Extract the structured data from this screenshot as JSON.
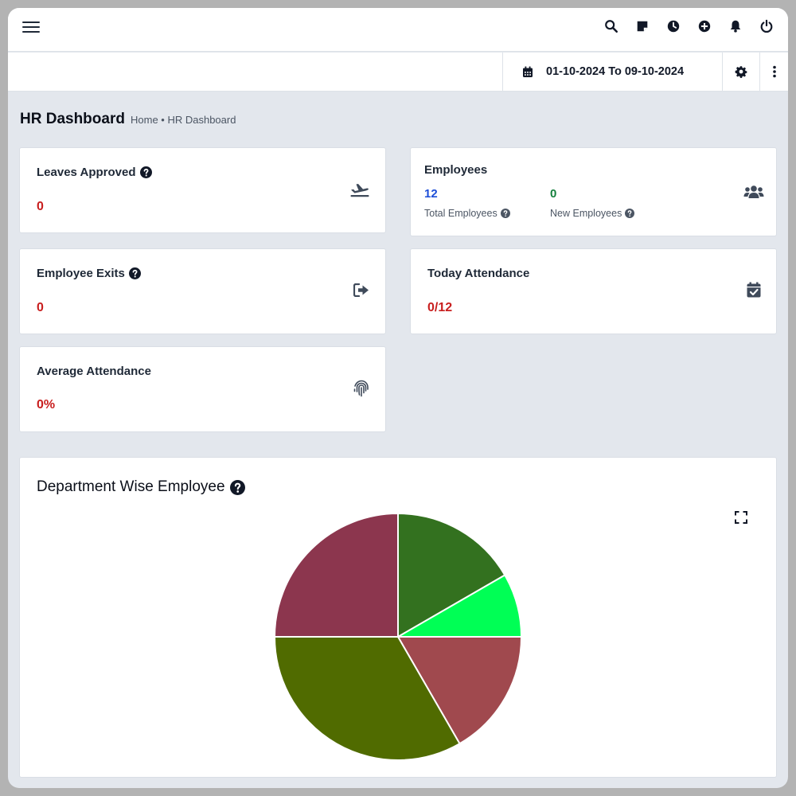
{
  "topbar": {
    "icons": [
      "search-icon",
      "note-icon",
      "clock-icon",
      "plus-circle-icon",
      "bell-icon",
      "power-icon"
    ]
  },
  "subbar": {
    "date_range": "01-10-2024 To 09-10-2024"
  },
  "page": {
    "title": "HR Dashboard",
    "breadcrumb": "Home • HR Dashboard"
  },
  "cards": {
    "leaves": {
      "title": "Leaves Approved",
      "value": "0",
      "icon": "plane-departure-icon"
    },
    "employees": {
      "title": "Employees",
      "total_value": "12",
      "total_label": "Total Employees",
      "new_value": "0",
      "new_label": "New Employees",
      "icon": "users-icon"
    },
    "exits": {
      "title": "Employee Exits",
      "value": "0",
      "icon": "sign-out-icon"
    },
    "attendance_today": {
      "title": "Today Attendance",
      "value": "0/12",
      "icon": "calendar-check-icon"
    },
    "average_attendance": {
      "title": "Average Attendance",
      "value": "0%",
      "icon": "fingerprint-icon"
    }
  },
  "colors": {
    "value_red": "#c81e1e",
    "total_blue": "#1d4ed8",
    "new_green": "#15803d"
  },
  "department_chart": {
    "title": "Department Wise Employee"
  },
  "chart_data": {
    "type": "pie",
    "start_angle_deg": 0,
    "values": [
      2,
      1,
      2,
      4,
      3
    ],
    "colors": [
      "#33711f",
      "#00ff55",
      "#a0494e",
      "#506b00",
      "#8c364e"
    ]
  }
}
